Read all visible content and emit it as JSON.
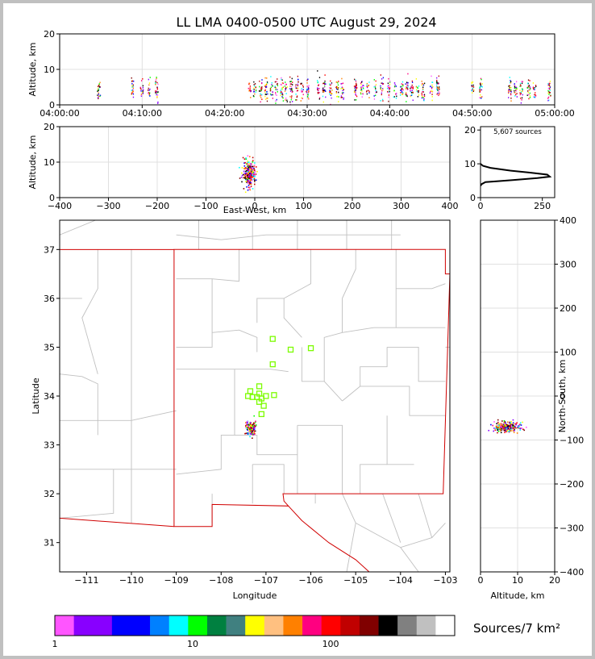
{
  "figure": {
    "title": "LL LMA 0400-0500 UTC August 29, 2024",
    "source_count_label": "5,607 sources",
    "colorbar_label": "Sources/7 km²"
  },
  "colors": {
    "scale": [
      "#ff55ff",
      "#8800ff",
      "#8800ff",
      "#0000ff",
      "#0000ff",
      "#0080ff",
      "#00ffff",
      "#00ff00",
      "#008040",
      "#408080",
      "#ffff00",
      "#ffc080",
      "#ff8000",
      "#ff0080",
      "#ff0000",
      "#c00000",
      "#800000",
      "#000000",
      "#808080",
      "#c0c0c0",
      "#ffffff"
    ],
    "map_state_border": "#d00000",
    "map_county_lines": "#c0c0c0",
    "station_marker": "#7cfc00"
  },
  "chart_data": [
    {
      "id": "time_height",
      "type": "scatter",
      "title": "",
      "xlabel": "",
      "ylabel": "Altitude, km",
      "x_ticks": [
        "04:00:00",
        "04:10:00",
        "04:20:00",
        "04:30:00",
        "04:40:00",
        "04:50:00",
        "05:00:00"
      ],
      "y_ticks": [
        "0",
        "10",
        "20"
      ],
      "xlim_minutes": [
        0,
        60
      ],
      "ylim": [
        0,
        20
      ],
      "activity_minutes": [
        4.7,
        8.8,
        9.9,
        10.8,
        11.7,
        23.0,
        23.6,
        24.3,
        25.0,
        25.6,
        26.2,
        26.9,
        27.4,
        28.0,
        28.7,
        29.3,
        30.0,
        31.3,
        32.0,
        32.8,
        33.6,
        34.2,
        35.8,
        36.6,
        37.3,
        38.2,
        39.0,
        39.8,
        40.6,
        41.4,
        42.0,
        42.6,
        43.3,
        44.0,
        45.0,
        45.8,
        50.0,
        51.0,
        54.5,
        55.2,
        55.9,
        56.8,
        57.5,
        59.3
      ],
      "altitude_range_km": [
        3,
        11
      ],
      "grid": true
    },
    {
      "id": "ew_height",
      "type": "scatter",
      "xlabel": "East-West, km",
      "ylabel": "Altitude, km",
      "x_ticks": [
        "−400",
        "−300",
        "−200",
        "−100",
        "0",
        "100",
        "200",
        "300",
        "400"
      ],
      "y_ticks": [
        "0",
        "10",
        "20"
      ],
      "xlim": [
        -400,
        400
      ],
      "ylim": [
        0,
        20
      ],
      "cluster": {
        "x_center_km": -12,
        "x_spread_km": 14,
        "alt_center_km": 7,
        "alt_spread_km": 3
      },
      "grid": true
    },
    {
      "id": "alt_histogram",
      "type": "line",
      "x_ticks": [
        "0",
        "250"
      ],
      "y_ticks": [
        "0",
        "10",
        "20"
      ],
      "xlim": [
        0,
        300
      ],
      "ylim": [
        0,
        21
      ],
      "x": [
        0,
        5,
        20,
        60,
        130,
        230,
        280,
        270,
        200,
        120,
        40,
        10,
        0
      ],
      "y": [
        3.5,
        4,
        4.6,
        4.8,
        5.2,
        5.8,
        6.2,
        6.8,
        7.4,
        8.0,
        8.8,
        9.4,
        10
      ]
    },
    {
      "id": "plan_view",
      "type": "scatter",
      "xlabel": "Longitude",
      "ylabel": "Latitude",
      "x_ticks": [
        "−111",
        "−110",
        "−109",
        "−108",
        "−107",
        "−106",
        "−105",
        "−104",
        "−103"
      ],
      "y_ticks": [
        "31",
        "32",
        "33",
        "34",
        "35",
        "36",
        "37"
      ],
      "xlim": [
        -111.6,
        -102.9
      ],
      "ylim": [
        30.4,
        37.6
      ],
      "sources": {
        "lon_center": -107.35,
        "lat_center": 33.35,
        "lon_spread": 0.12,
        "lat_spread": 0.15
      },
      "stations": [
        {
          "lon": -106.85,
          "lat": 35.17
        },
        {
          "lon": -106.45,
          "lat": 34.95
        },
        {
          "lon": -106.0,
          "lat": 34.98
        },
        {
          "lon": -106.85,
          "lat": 34.65
        },
        {
          "lon": -107.15,
          "lat": 34.2
        },
        {
          "lon": -107.35,
          "lat": 34.1
        },
        {
          "lon": -107.15,
          "lat": 34.05
        },
        {
          "lon": -107.4,
          "lat": 34.0
        },
        {
          "lon": -107.3,
          "lat": 33.98
        },
        {
          "lon": -107.2,
          "lat": 33.98
        },
        {
          "lon": -107.1,
          "lat": 33.95
        },
        {
          "lon": -107.0,
          "lat": 34.0
        },
        {
          "lon": -106.82,
          "lat": 34.02
        },
        {
          "lon": -107.15,
          "lat": 33.88
        },
        {
          "lon": -107.05,
          "lat": 33.8
        },
        {
          "lon": -107.1,
          "lat": 33.63
        }
      ]
    },
    {
      "id": "ns_height",
      "type": "scatter",
      "xlabel": "Altitude, km",
      "ylabel": "North-South, km",
      "x_ticks": [
        "0",
        "10",
        "20"
      ],
      "y_ticks": [
        "400",
        "300",
        "200",
        "100",
        "0",
        "−100",
        "−200",
        "−300",
        "−400"
      ],
      "xlim": [
        0,
        20
      ],
      "ylim": [
        -400,
        400
      ],
      "cluster": {
        "alt_center_km": 7,
        "alt_spread_km": 3,
        "y_center_km": -70,
        "y_spread_km": 12
      }
    },
    {
      "id": "colorbar",
      "type": "heatmap",
      "tick_labels": [
        "1",
        "10",
        "100"
      ],
      "tick_values": [
        1,
        10,
        100
      ]
    }
  ]
}
